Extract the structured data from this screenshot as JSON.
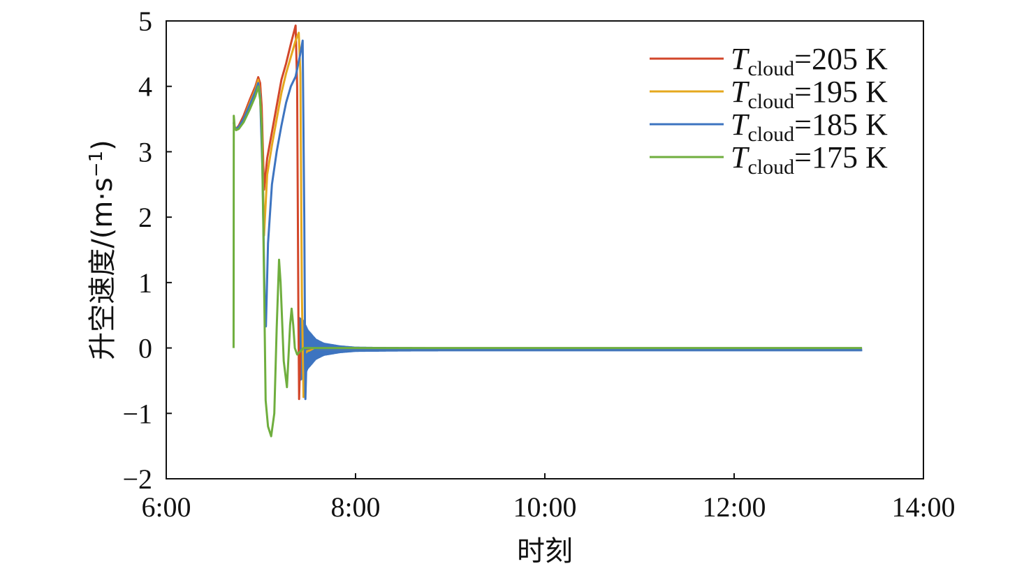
{
  "chart_data": {
    "type": "line",
    "title": "",
    "xlabel": "时刻",
    "ylabel": "升空速度/(m·s",
    "ylabel_sup": "−1",
    "ylabel_close": ")",
    "xlim": [
      360,
      840
    ],
    "ylim": [
      -2,
      5
    ],
    "x_ticks": [
      360,
      480,
      600,
      720,
      840
    ],
    "x_tick_labels": [
      "6:00",
      "8:00",
      "10:00",
      "12:00",
      "14:00"
    ],
    "y_ticks": [
      -2,
      -1,
      0,
      1,
      2,
      3,
      4,
      5
    ],
    "y_tick_labels": [
      "−2",
      "−1",
      "0",
      "1",
      "2",
      "3",
      "4",
      "5"
    ],
    "grid": false,
    "legend_position": "top-right",
    "series": [
      {
        "name": "T_cloud=205 K",
        "legend_var": "T",
        "legend_sub": "cloud",
        "legend_rest": "=205 K",
        "color": "#d2462a",
        "x": [
          402.7,
          403.4,
          404.3,
          406,
          409,
          413,
          416.5,
          418.3,
          419.5,
          420.5,
          422,
          424,
          427,
          430,
          433,
          436,
          439,
          442,
          443,
          443.8,
          444.2,
          445,
          447,
          455,
          480,
          540,
          600,
          700,
          801
        ],
        "y": [
          3.45,
          3.38,
          3.35,
          3.4,
          3.55,
          3.8,
          4.0,
          4.14,
          4.05,
          3.7,
          2.42,
          2.9,
          3.3,
          3.7,
          4.1,
          4.35,
          4.65,
          4.93,
          4.0,
          0.5,
          -0.78,
          -0.05,
          0.0,
          -0.01,
          -0.01,
          -0.01,
          -0.01,
          -0.01,
          -0.01
        ]
      },
      {
        "name": "T_cloud=195 K",
        "legend_var": "T",
        "legend_sub": "cloud",
        "legend_rest": "=195 K",
        "color": "#e5a81e",
        "x": [
          402.7,
          403.4,
          404.3,
          406,
          409,
          413,
          416.5,
          418.3,
          419.5,
          420.8,
          422,
          424,
          427,
          430,
          433,
          436,
          439,
          442,
          444,
          445,
          446,
          447,
          449,
          455,
          480,
          540,
          600,
          700,
          801
        ],
        "y": [
          3.45,
          3.38,
          3.35,
          3.38,
          3.5,
          3.75,
          3.95,
          4.1,
          3.9,
          3.2,
          1.72,
          2.65,
          3.1,
          3.5,
          3.9,
          4.2,
          4.45,
          4.7,
          4.82,
          4.2,
          0.8,
          -0.75,
          -0.05,
          -0.02,
          -0.02,
          -0.02,
          -0.02,
          -0.02,
          -0.02
        ]
      },
      {
        "name": "T_cloud=185 K",
        "legend_var": "T",
        "legend_sub": "cloud",
        "legend_rest": "=185 K",
        "color": "#3d74c0",
        "x": [
          402.7,
          403.4,
          404.3,
          406,
          409,
          413,
          416.5,
          418.3,
          419.5,
          421,
          422.5,
          423.2,
          424.5,
          427,
          430,
          433,
          436,
          439,
          442,
          445,
          446.5,
          447.5,
          448.2,
          449,
          455,
          465,
          480,
          540,
          600,
          700,
          801
        ],
        "y": [
          3.45,
          3.38,
          3.35,
          3.38,
          3.5,
          3.72,
          3.92,
          4.05,
          3.85,
          2.7,
          0.6,
          0.33,
          1.6,
          2.5,
          3.0,
          3.4,
          3.75,
          4.0,
          4.15,
          4.5,
          4.7,
          2.0,
          -0.78,
          -0.1,
          -0.02,
          -0.02,
          -0.02,
          -0.02,
          -0.02,
          -0.02,
          -0.02
        ]
      },
      {
        "name": "T_cloud=175 K",
        "legend_var": "T",
        "legend_sub": "cloud",
        "legend_rest": "=175 K",
        "color": "#6fae3e",
        "x": [
          402.7,
          402.8,
          403.4,
          404.3,
          406,
          409,
          413,
          416.5,
          418.3,
          419.5,
          420.5,
          421.5,
          423,
          424.5,
          426.5,
          428.5,
          430,
          431.5,
          432.5,
          434.5,
          436.5,
          438.5,
          439.5,
          440.5,
          441.5,
          443,
          445,
          447,
          450,
          455,
          480,
          540,
          600,
          700,
          801
        ],
        "y": [
          0.0,
          3.55,
          3.38,
          3.33,
          3.35,
          3.45,
          3.65,
          3.85,
          4.0,
          3.8,
          3.4,
          1.9,
          -0.8,
          -1.2,
          -1.35,
          -1.0,
          0.3,
          1.35,
          1.0,
          -0.2,
          -0.6,
          0.35,
          0.6,
          0.35,
          0.0,
          -0.1,
          -0.05,
          0.0,
          0.0,
          0.0,
          0.0,
          0.0,
          0.0,
          0.0,
          0.0
        ]
      }
    ],
    "oscillation_band": {
      "series": "T_cloud=185 K",
      "x": [
        444,
        447,
        450,
        455,
        460,
        470,
        480,
        500,
        540,
        801
      ],
      "amplitude": [
        0.5,
        0.45,
        0.3,
        0.16,
        0.1,
        0.06,
        0.04,
        0.035,
        0.03,
        0.03
      ]
    }
  }
}
